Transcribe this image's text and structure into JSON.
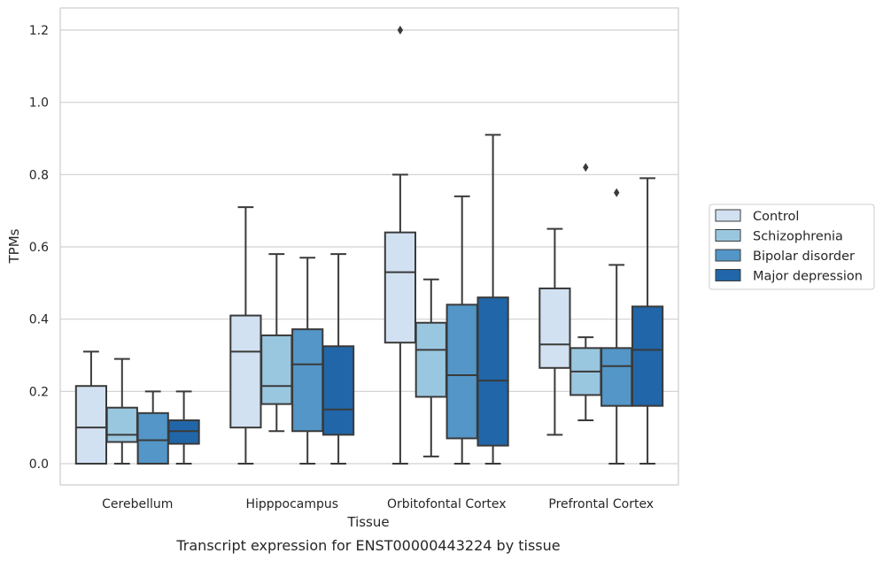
{
  "chart_data": {
    "type": "box",
    "xlabel": "Tissue",
    "ylabel": "TPMs",
    "caption": "Transcript expression for ENST00000443224 by tissue",
    "ylim": [
      -0.06,
      1.26
    ],
    "yticks": [
      "0.0",
      "0.2",
      "0.4",
      "0.6",
      "0.8",
      "1.0",
      "1.2"
    ],
    "ytick_values": [
      0.0,
      0.2,
      0.4,
      0.6,
      0.8,
      1.0,
      1.2
    ],
    "grid": "horizontal",
    "legend_position": "right",
    "categories": [
      "Cerebellum",
      "Hipppocampus",
      "Orbitofontal Cortex",
      "Prefrontal Cortex"
    ],
    "series": [
      {
        "name": "Control",
        "color": "#d1e1f1",
        "boxes": [
          {
            "min": 0.0,
            "q1": 0.0,
            "median": 0.1,
            "q3": 0.215,
            "max": 0.31,
            "outliers": []
          },
          {
            "min": 0.0,
            "q1": 0.1,
            "median": 0.31,
            "q3": 0.41,
            "max": 0.71,
            "outliers": []
          },
          {
            "min": 0.0,
            "q1": 0.335,
            "median": 0.53,
            "q3": 0.64,
            "max": 0.8,
            "outliers": [
              1.2
            ]
          },
          {
            "min": 0.08,
            "q1": 0.265,
            "median": 0.33,
            "q3": 0.485,
            "max": 0.65,
            "outliers": []
          }
        ]
      },
      {
        "name": "Schizophrenia",
        "color": "#9ac7e0",
        "boxes": [
          {
            "min": 0.0,
            "q1": 0.06,
            "median": 0.08,
            "q3": 0.155,
            "max": 0.29,
            "outliers": []
          },
          {
            "min": 0.09,
            "q1": 0.165,
            "median": 0.215,
            "q3": 0.355,
            "max": 0.58,
            "outliers": []
          },
          {
            "min": 0.02,
            "q1": 0.185,
            "median": 0.315,
            "q3": 0.39,
            "max": 0.51,
            "outliers": []
          },
          {
            "min": 0.12,
            "q1": 0.19,
            "median": 0.255,
            "q3": 0.32,
            "max": 0.35,
            "outliers": [
              0.82
            ]
          }
        ]
      },
      {
        "name": "Bipolar disorder",
        "color": "#5396c7",
        "boxes": [
          {
            "min": 0.0,
            "q1": 0.0,
            "median": 0.065,
            "q3": 0.14,
            "max": 0.2,
            "outliers": []
          },
          {
            "min": 0.0,
            "q1": 0.09,
            "median": 0.275,
            "q3": 0.372,
            "max": 0.57,
            "outliers": []
          },
          {
            "min": 0.0,
            "q1": 0.07,
            "median": 0.245,
            "q3": 0.44,
            "max": 0.74,
            "outliers": []
          },
          {
            "min": 0.0,
            "q1": 0.16,
            "median": 0.27,
            "q3": 0.32,
            "max": 0.55,
            "outliers": [
              0.75
            ]
          }
        ]
      },
      {
        "name": "Major depression",
        "color": "#2166a8",
        "boxes": [
          {
            "min": 0.0,
            "q1": 0.055,
            "median": 0.09,
            "q3": 0.12,
            "max": 0.2,
            "outliers": []
          },
          {
            "min": 0.0,
            "q1": 0.08,
            "median": 0.15,
            "q3": 0.325,
            "max": 0.58,
            "outliers": []
          },
          {
            "min": 0.0,
            "q1": 0.05,
            "median": 0.23,
            "q3": 0.46,
            "max": 0.91,
            "outliers": []
          },
          {
            "min": 0.0,
            "q1": 0.16,
            "median": 0.315,
            "q3": 0.435,
            "max": 0.79,
            "outliers": []
          }
        ]
      }
    ]
  }
}
